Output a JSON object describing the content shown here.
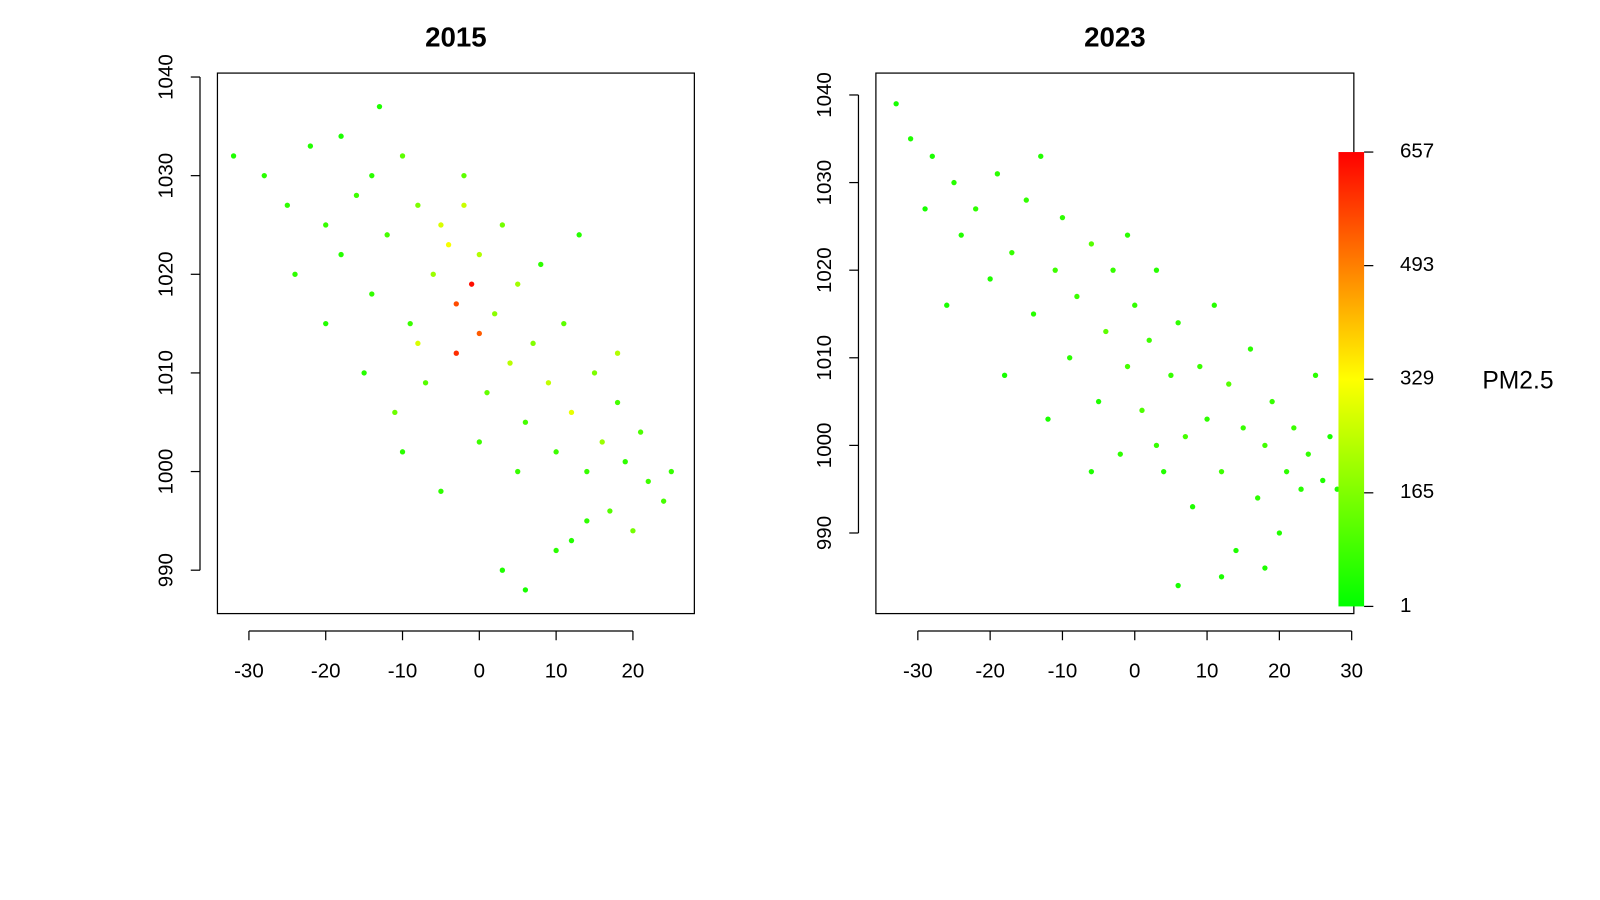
{
  "chart_data": [
    {
      "type": "scatter",
      "title": "2015",
      "xlim": [
        -34.1,
        28.0
      ],
      "ylim": [
        985.6,
        1040.4
      ],
      "xticks": [
        -30,
        -20,
        -10,
        0,
        10,
        20
      ],
      "yticks": [
        990,
        1000,
        1010,
        1020,
        1030,
        1040
      ],
      "x": [
        -32,
        -28,
        -25,
        -22,
        -20,
        -18,
        -16,
        -14,
        -13,
        -12,
        -10,
        -9,
        -8,
        -7,
        -6,
        -5,
        -4,
        -3,
        -3,
        -2,
        -1,
        0,
        0,
        1,
        2,
        3,
        4,
        5,
        6,
        7,
        8,
        9,
        10,
        11,
        12,
        13,
        14,
        15,
        16,
        17,
        18,
        19,
        20,
        21,
        22,
        24,
        25,
        3,
        6,
        10,
        -15,
        -20,
        -24,
        -11,
        -5,
        0,
        5,
        -18,
        -10,
        12,
        -8,
        -2,
        -14,
        18,
        14
      ],
      "y": [
        1032,
        1030,
        1027,
        1033,
        1025,
        1022,
        1028,
        1018,
        1037,
        1024,
        1032,
        1015,
        1027,
        1009,
        1020,
        1025,
        1023,
        1017,
        1012,
        1027,
        1019,
        1014,
        1022,
        1008,
        1016,
        1025,
        1011,
        1019,
        1005,
        1013,
        1021,
        1009,
        1002,
        1015,
        1006,
        1024,
        1000,
        1010,
        1003,
        996,
        1007,
        1001,
        994,
        1004,
        999,
        997,
        1000,
        990,
        988,
        992,
        1010,
        1015,
        1020,
        1006,
        998,
        1003,
        1000,
        1034,
        1002,
        993,
        1013,
        1030,
        1030,
        1012,
        995
      ],
      "values": [
        40,
        55,
        60,
        45,
        70,
        50,
        80,
        65,
        40,
        90,
        120,
        75,
        160,
        110,
        200,
        280,
        320,
        560,
        600,
        260,
        640,
        540,
        230,
        130,
        180,
        150,
        240,
        210,
        90,
        170,
        60,
        250,
        80,
        120,
        300,
        50,
        70,
        160,
        200,
        110,
        90,
        60,
        150,
        100,
        80,
        90,
        70,
        40,
        30,
        55,
        50,
        45,
        60,
        140,
        60,
        80,
        70,
        35,
        55,
        45,
        280,
        120,
        55,
        230,
        60
      ]
    },
    {
      "type": "scatter",
      "title": "2023",
      "xlim": [
        -35.8,
        30.3
      ],
      "ylim": [
        980.8,
        1042.5
      ],
      "xticks": [
        -30,
        -20,
        -10,
        0,
        10,
        20,
        30
      ],
      "yticks": [
        990,
        1000,
        1010,
        1020,
        1030,
        1040
      ],
      "x": [
        -33,
        -31,
        -28,
        -25,
        -24,
        -22,
        -20,
        -19,
        -17,
        -15,
        -14,
        -13,
        -11,
        -10,
        -9,
        -8,
        -6,
        -5,
        -4,
        -3,
        -2,
        -1,
        0,
        1,
        2,
        3,
        4,
        5,
        6,
        7,
        8,
        9,
        10,
        11,
        12,
        13,
        14,
        15,
        16,
        17,
        18,
        19,
        20,
        21,
        22,
        23,
        24,
        25,
        26,
        27,
        28,
        6,
        12,
        18,
        -18,
        -12,
        -6,
        -26,
        -29,
        -1,
        3
      ],
      "y": [
        1039,
        1035,
        1033,
        1030,
        1024,
        1027,
        1019,
        1031,
        1022,
        1028,
        1015,
        1033,
        1020,
        1026,
        1010,
        1017,
        1023,
        1005,
        1013,
        1020,
        999,
        1009,
        1016,
        1004,
        1012,
        1020,
        997,
        1008,
        1014,
        1001,
        993,
        1009,
        1003,
        1016,
        997,
        1007,
        988,
        1002,
        1011,
        994,
        1000,
        1005,
        990,
        997,
        1002,
        995,
        999,
        1008,
        996,
        1001,
        995,
        984,
        985,
        986,
        1008,
        1003,
        997,
        1016,
        1027,
        1024,
        1000
      ],
      "values": [
        30,
        40,
        35,
        50,
        45,
        60,
        40,
        55,
        70,
        65,
        50,
        45,
        80,
        60,
        55,
        75,
        110,
        40,
        120,
        70,
        60,
        90,
        65,
        100,
        80,
        50,
        45,
        70,
        60,
        90,
        40,
        75,
        60,
        50,
        80,
        110,
        40,
        70,
        55,
        60,
        85,
        70,
        45,
        60,
        75,
        50,
        65,
        55,
        40,
        35,
        45,
        30,
        35,
        40,
        30,
        35,
        40,
        35,
        30,
        55,
        70
      ],
      "colorbar": {
        "label": "PM2.5",
        "lim": [
          1,
          657
        ],
        "ticks": [
          1,
          165,
          329,
          493,
          657
        ],
        "colors": [
          "#00ff00",
          "#ffff00",
          "#ff0000"
        ]
      }
    }
  ]
}
